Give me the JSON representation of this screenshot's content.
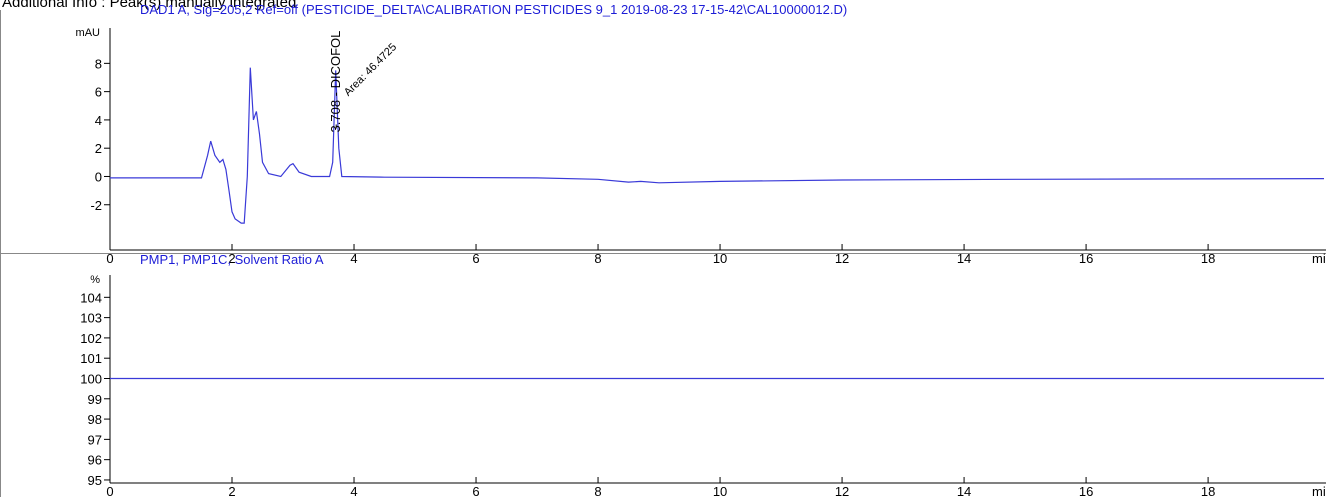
{
  "header": "Additional Info : Peak(s) manually integrated",
  "chart_data": [
    {
      "type": "line",
      "title": "DAD1 A, Sig=205,2 Ref=off (PESTICIDE_DELTA\\CALIBRATION PESTICIDES 9_1 2019-08-23 17-15-42\\CAL10000012.D)",
      "y_unit": "mAU",
      "x_unit": "min",
      "xlim": [
        0,
        19.9
      ],
      "xticks": [
        0,
        2,
        4,
        6,
        8,
        10,
        12,
        14,
        16,
        18
      ],
      "ylim": [
        -5.2,
        10.5
      ],
      "yticks": [
        -2,
        0,
        2,
        4,
        6,
        8
      ],
      "peak": {
        "x": 3.708,
        "label": "3.708 - DICOFOL",
        "area_label": "Area: 46.4725"
      },
      "series": [
        {
          "color": "#3a3ad8",
          "x": [
            0,
            1.5,
            1.6,
            1.65,
            1.72,
            1.8,
            1.85,
            1.9,
            1.95,
            2.0,
            2.05,
            2.15,
            2.2,
            2.25,
            2.3,
            2.35,
            2.4,
            2.45,
            2.5,
            2.6,
            2.8,
            2.95,
            3.0,
            3.1,
            3.3,
            3.6,
            3.65,
            3.7,
            3.75,
            3.8,
            4.5,
            7,
            8,
            8.5,
            8.7,
            9,
            10,
            12,
            15,
            19.9
          ],
          "values": [
            -0.1,
            -0.1,
            1.5,
            2.5,
            1.5,
            1.0,
            1.2,
            0.5,
            -1,
            -2.5,
            -3,
            -3.3,
            -3.3,
            0,
            7.7,
            4,
            4.6,
            3,
            1,
            0.2,
            0,
            0.8,
            0.9,
            0.3,
            0,
            0,
            1,
            7.5,
            2,
            0,
            -0.05,
            -0.1,
            -0.2,
            -0.4,
            -0.35,
            -0.45,
            -0.35,
            -0.25,
            -0.2,
            -0.15
          ]
        }
      ]
    },
    {
      "type": "line",
      "title": "PMP1, PMP1C, Solvent Ratio A",
      "y_unit": "%",
      "x_unit": "min",
      "xlim": [
        0,
        19.9
      ],
      "xticks": [
        0,
        2,
        4,
        6,
        8,
        10,
        12,
        14,
        16,
        18
      ],
      "ylim": [
        94.85,
        105.1
      ],
      "yticks": [
        95,
        96,
        97,
        98,
        99,
        100,
        101,
        102,
        103,
        104
      ],
      "series": [
        {
          "color": "#3a3ad8",
          "x": [
            0,
            19.9
          ],
          "values": [
            100,
            100
          ]
        }
      ]
    }
  ]
}
